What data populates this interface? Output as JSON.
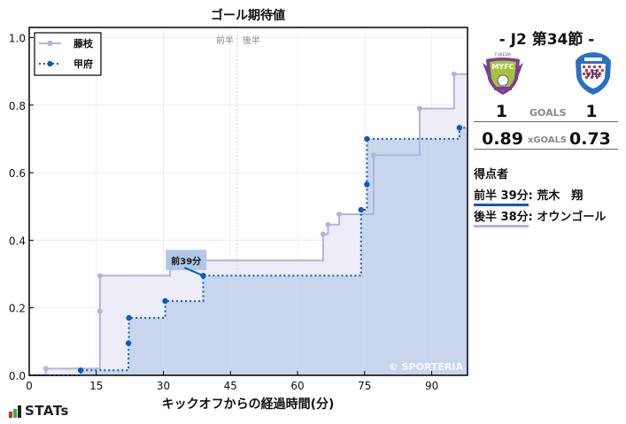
{
  "chart_data": {
    "type": "line",
    "subtype": "step",
    "title": "ゴール期待値",
    "xlabel": "キックオフからの経過時間(分)",
    "ylabel": "",
    "xlim": [
      0,
      98
    ],
    "ylim": [
      0,
      1.03
    ],
    "xticks": [
      0,
      15,
      30,
      45,
      60,
      75,
      90
    ],
    "yticks": [
      0.0,
      0.2,
      0.4,
      0.6,
      0.8,
      1.0
    ],
    "ytick_labels": [
      "0.0",
      "0.2",
      "0.4",
      "0.6",
      "0.8",
      "1.0"
    ],
    "grid": true,
    "legend_position": "upper left",
    "halftime_minute": 46.5,
    "halftime_labels": [
      "前半",
      "後半"
    ],
    "watermark": "© SPORTERIA",
    "series": [
      {
        "name": "藤枝",
        "color": "#b3b3dd",
        "fill": "#ecedf7",
        "line_style": "solid",
        "x": [
          3.7,
          15.8,
          15.8,
          31.5,
          65.7,
          66.8,
          69.3,
          77.0,
          87.3,
          95.0
        ],
        "y": [
          0.02,
          0.19,
          0.295,
          0.34,
          0.418,
          0.446,
          0.477,
          0.652,
          0.79,
          0.892
        ]
      },
      {
        "name": "甲府",
        "color": "#0a5bbd",
        "fill": "#c6d5ec",
        "line_style": "dotted",
        "x": [
          11.5,
          22.2,
          22.3,
          30.4,
          38.9,
          74.2,
          75.5,
          75.5,
          96.2,
          98.0
        ],
        "y": [
          0.015,
          0.095,
          0.17,
          0.22,
          0.295,
          0.49,
          0.565,
          0.7,
          0.733,
          0.733
        ]
      }
    ],
    "annotations": [
      {
        "text": "前39分",
        "x": 38.9,
        "y": 0.295,
        "label_x": 33.5,
        "label_y": 0.34
      }
    ]
  },
  "panel": {
    "round": "- J2 第34節 -",
    "home_team": "藤枝",
    "away_team": "甲府",
    "home_goals": "1",
    "away_goals": "1",
    "goals_label": "GOALS",
    "home_xg": "0.89",
    "away_xg": "0.73",
    "xg_label": "xGOALS",
    "scorers_title": "得点者",
    "scorers": [
      {
        "time": "前半 39分",
        "name": ": 荒木　翔",
        "color": "#0a5bbd"
      },
      {
        "time": "後半 38分",
        "name": ": オウンゴール",
        "color": "#b3b3dd"
      }
    ]
  },
  "footer": {
    "brand": "STATs"
  }
}
